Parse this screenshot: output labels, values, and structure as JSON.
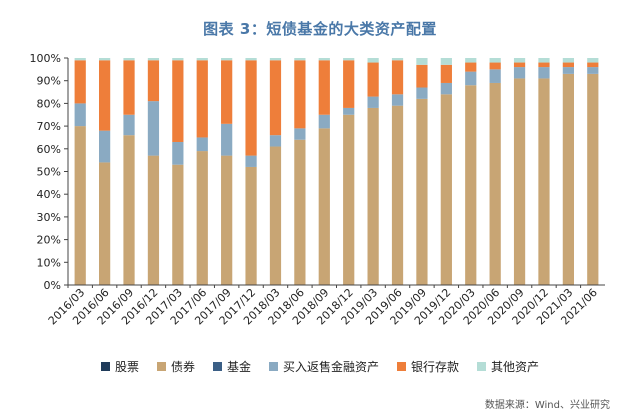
{
  "title": "图表 3：短债基金的大类资产配置",
  "source": "数据来源：Wind、兴业研究",
  "chart_data": {
    "type": "bar",
    "stacked": true,
    "categories": [
      "2016/03",
      "2016/06",
      "2016/09",
      "2016/12",
      "2017/03",
      "2017/06",
      "2017/09",
      "2017/12",
      "2018/03",
      "2018/06",
      "2018/09",
      "2018/12",
      "2019/03",
      "2019/06",
      "2019/09",
      "2019/12",
      "2020/03",
      "2020/06",
      "2020/09",
      "2020/12",
      "2021/03",
      "2021/06"
    ],
    "y_ticks": [
      "0%",
      "10%",
      "20%",
      "30%",
      "40%",
      "50%",
      "60%",
      "70%",
      "80%",
      "90%",
      "100%"
    ],
    "ylim": [
      0,
      100
    ],
    "series": [
      {
        "name": "股票",
        "color": "#1f3b5a",
        "values": [
          0,
          0,
          0,
          0,
          0,
          0,
          0,
          0,
          0,
          0,
          0,
          0,
          0,
          0,
          0,
          0,
          0,
          0,
          0,
          0,
          0,
          0
        ]
      },
      {
        "name": "债券",
        "color": "#c8a574",
        "values": [
          70,
          54,
          66,
          57,
          53,
          59,
          57,
          52,
          61,
          64,
          69,
          75,
          78,
          79,
          82,
          84,
          88,
          89,
          91,
          91,
          93,
          93
        ]
      },
      {
        "name": "基金",
        "color": "#3b5f86",
        "values": [
          0,
          0,
          0,
          0,
          0,
          0,
          0,
          0,
          0,
          0,
          0,
          0,
          0,
          0,
          0,
          0,
          0,
          0,
          0,
          0,
          0,
          0
        ]
      },
      {
        "name": "买入返售金融资产",
        "color": "#8aaac2",
        "values": [
          10,
          14,
          9,
          24,
          10,
          6,
          14,
          5,
          5,
          5,
          6,
          3,
          5,
          5,
          5,
          5,
          6,
          6,
          5,
          5,
          3,
          3
        ]
      },
      {
        "name": "银行存款",
        "color": "#ee7e3a",
        "values": [
          19,
          31,
          24,
          18,
          36,
          34,
          28,
          42,
          33,
          30,
          24,
          21,
          15,
          15,
          10,
          8,
          4,
          3,
          2,
          2,
          2,
          2
        ]
      },
      {
        "name": "其他资产",
        "color": "#b4ddd6",
        "values": [
          1,
          1,
          1,
          1,
          1,
          1,
          1,
          1,
          1,
          1,
          1,
          1,
          2,
          1,
          3,
          3,
          2,
          2,
          2,
          2,
          2,
          2
        ]
      }
    ]
  }
}
